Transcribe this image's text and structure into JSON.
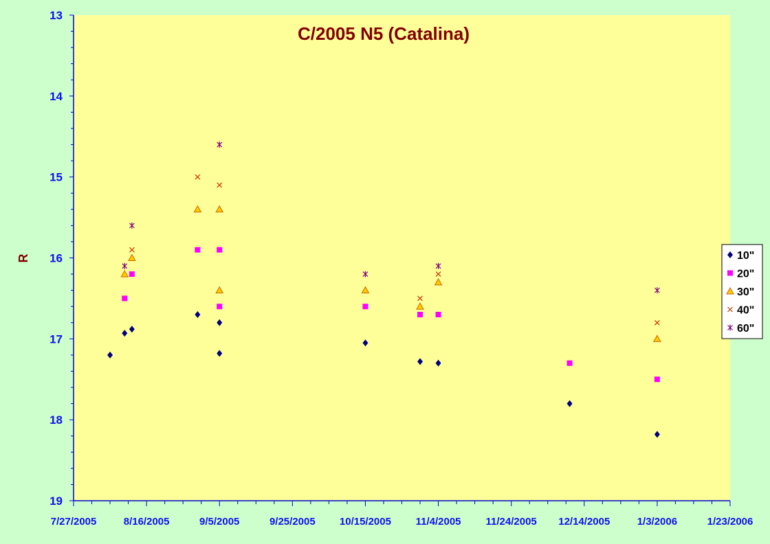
{
  "chart_data": {
    "type": "scatter",
    "title": "C/2005 N5 (Catalina)",
    "ylabel": "R",
    "xlabel": "",
    "y_reversed": true,
    "ylim": [
      13,
      19
    ],
    "y_ticks": [
      "13",
      "14",
      "15",
      "16",
      "17",
      "18",
      "19"
    ],
    "x_ticks": [
      "7/27/2005",
      "8/16/2005",
      "9/5/2005",
      "9/25/2005",
      "10/15/2005",
      "11/4/2005",
      "11/24/2005",
      "12/14/2005",
      "1/3/2006",
      "1/23/2006"
    ],
    "xlim": [
      "7/27/2005",
      "1/23/2006"
    ],
    "grid": false,
    "legend_position": "right",
    "colors": {
      "page_background": "#ccffcc",
      "plot_background": "#ffff99",
      "axis": "#0000cc",
      "title": "#800000"
    },
    "series": [
      {
        "name": "10\"",
        "marker": "diamond",
        "color": "#000080",
        "points": [
          [
            "8/6/2005",
            17.2
          ],
          [
            "8/10/2005",
            16.93
          ],
          [
            "8/12/2005",
            16.88
          ],
          [
            "8/30/2005",
            16.7
          ],
          [
            "9/5/2005",
            16.8
          ],
          [
            "9/5/2005",
            17.18
          ],
          [
            "10/15/2005",
            17.05
          ],
          [
            "10/30/2005",
            17.28
          ],
          [
            "11/4/2005",
            17.3
          ],
          [
            "12/10/2005",
            17.8
          ],
          [
            "1/3/2006",
            18.18
          ]
        ]
      },
      {
        "name": "20\"",
        "marker": "square",
        "color": "#ff00ff",
        "points": [
          [
            "8/10/2005",
            16.5
          ],
          [
            "8/12/2005",
            16.2
          ],
          [
            "8/30/2005",
            15.9
          ],
          [
            "9/5/2005",
            15.9
          ],
          [
            "9/5/2005",
            16.6
          ],
          [
            "10/15/2005",
            16.6
          ],
          [
            "10/30/2005",
            16.7
          ],
          [
            "11/4/2005",
            16.7
          ],
          [
            "12/10/2005",
            17.3
          ],
          [
            "1/3/2006",
            17.5
          ]
        ]
      },
      {
        "name": "30\"",
        "marker": "triangle",
        "color": "#ff9900",
        "points": [
          [
            "8/10/2005",
            16.2
          ],
          [
            "8/12/2005",
            16.0
          ],
          [
            "8/30/2005",
            15.4
          ],
          [
            "9/5/2005",
            15.4
          ],
          [
            "9/5/2005",
            16.4
          ],
          [
            "10/15/2005",
            16.4
          ],
          [
            "10/30/2005",
            16.6
          ],
          [
            "11/4/2005",
            16.3
          ],
          [
            "1/3/2006",
            17.0
          ]
        ]
      },
      {
        "name": "40\"",
        "marker": "x",
        "color": "#cc3300",
        "points": [
          [
            "8/12/2005",
            15.9
          ],
          [
            "8/30/2005",
            15.0
          ],
          [
            "9/5/2005",
            15.1
          ],
          [
            "10/30/2005",
            16.5
          ],
          [
            "11/4/2005",
            16.2
          ],
          [
            "1/3/2006",
            16.8
          ]
        ]
      },
      {
        "name": "60\"",
        "marker": "star",
        "color": "#800080",
        "points": [
          [
            "8/10/2005",
            16.1
          ],
          [
            "8/12/2005",
            15.6
          ],
          [
            "9/5/2005",
            14.6
          ],
          [
            "10/15/2005",
            16.2
          ],
          [
            "11/4/2005",
            16.1
          ],
          [
            "1/3/2006",
            16.4
          ]
        ]
      }
    ]
  }
}
